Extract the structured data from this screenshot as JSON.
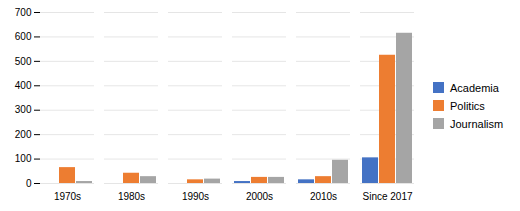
{
  "chart_data": {
    "type": "bar",
    "categories": [
      "1970s",
      "1980s",
      "1990s",
      "2000s",
      "2010s",
      "Since 2017"
    ],
    "series": [
      {
        "name": "Academia",
        "color": "#4472C4",
        "values": [
          0,
          0,
          0,
          8,
          15,
          105
        ]
      },
      {
        "name": "Politics",
        "color": "#ED7D31",
        "values": [
          65,
          42,
          15,
          25,
          28,
          525
        ]
      },
      {
        "name": "Journalism",
        "color": "#A5A5A5",
        "values": [
          8,
          28,
          18,
          25,
          95,
          615
        ]
      }
    ],
    "ylim": [
      0,
      700
    ],
    "yticks": [
      0,
      100,
      200,
      300,
      400,
      500,
      600,
      700
    ],
    "grid": true,
    "legend": "right"
  }
}
